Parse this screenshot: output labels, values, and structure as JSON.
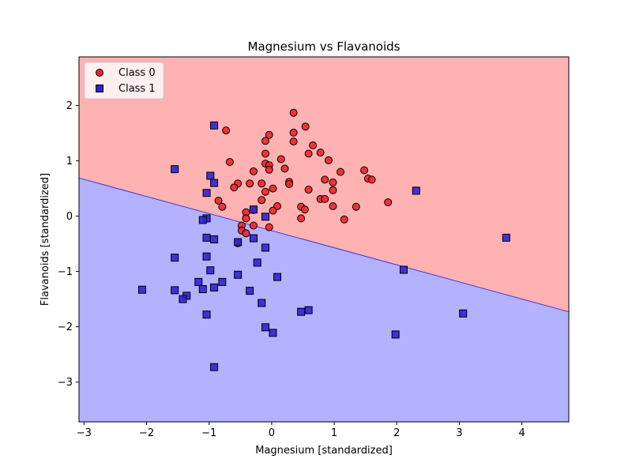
{
  "chart_data": {
    "type": "scatter",
    "title": "Magnesium vs Flavanoids",
    "xlabel": "Magnesium [standardized]",
    "ylabel": "Flavanoids [standardized]",
    "xlim": [
      -3.08,
      4.75
    ],
    "ylim": [
      -3.72,
      2.88
    ],
    "xticks": [
      -3,
      -2,
      -1,
      0,
      1,
      2,
      3,
      4
    ],
    "yticks": [
      -3,
      -2,
      -1,
      0,
      1,
      2
    ],
    "grid": false,
    "legend_position": "top-left",
    "decision_boundary": {
      "x": [
        -3.08,
        4.75
      ],
      "y": [
        0.69,
        -1.73
      ],
      "above_region_color": "#ffb2b2",
      "below_region_color": "#b2b2ff",
      "line_color": "#4b33e0"
    },
    "series": [
      {
        "name": "Class 0",
        "marker": "circle",
        "color": "#f0242a",
        "points": [
          [
            0.35,
            1.87
          ],
          [
            0.54,
            1.62
          ],
          [
            -0.73,
            1.55
          ],
          [
            0.35,
            1.51
          ],
          [
            -0.04,
            1.47
          ],
          [
            -0.1,
            1.36
          ],
          [
            0.35,
            1.35
          ],
          [
            0.66,
            1.28
          ],
          [
            0.78,
            1.15
          ],
          [
            -0.1,
            1.13
          ],
          [
            0.59,
            1.13
          ],
          [
            0.15,
            1.03
          ],
          [
            -0.67,
            0.98
          ],
          [
            0.91,
            1.01
          ],
          [
            -0.1,
            0.95
          ],
          [
            -0.04,
            0.92
          ],
          [
            -0.04,
            0.84
          ],
          [
            0.21,
            0.86
          ],
          [
            -0.29,
            0.81
          ],
          [
            1.1,
            0.8
          ],
          [
            1.48,
            0.83
          ],
          [
            1.54,
            0.68
          ],
          [
            1.6,
            0.66
          ],
          [
            0.28,
            0.62
          ],
          [
            0.28,
            0.58
          ],
          [
            0.85,
            0.66
          ],
          [
            0.98,
            0.61
          ],
          [
            -0.54,
            0.59
          ],
          [
            -0.35,
            0.59
          ],
          [
            -0.16,
            0.59
          ],
          [
            -0.6,
            0.52
          ],
          [
            0.02,
            0.5
          ],
          [
            0.59,
            0.48
          ],
          [
            0.98,
            0.47
          ],
          [
            -0.1,
            0.44
          ],
          [
            -0.16,
            0.29
          ],
          [
            -0.85,
            0.28
          ],
          [
            0.78,
            0.31
          ],
          [
            0.85,
            0.31
          ],
          [
            0.09,
            0.18
          ],
          [
            0.98,
            0.18
          ],
          [
            1.35,
            0.17
          ],
          [
            -0.79,
            0.17
          ],
          [
            0.47,
            0.17
          ],
          [
            0.53,
            0.12
          ],
          [
            -0.29,
            0.11
          ],
          [
            0.02,
            0.1
          ],
          [
            -0.41,
            0.07
          ],
          [
            -0.41,
            -0.04
          ],
          [
            0.47,
            -0.04
          ],
          [
            1.16,
            -0.06
          ],
          [
            -0.48,
            -0.17
          ],
          [
            -0.29,
            -0.17
          ],
          [
            -0.04,
            -0.2
          ],
          [
            -0.48,
            -0.26
          ],
          [
            -0.41,
            -0.31
          ],
          [
            -0.54,
            -0.49
          ],
          [
            1.86,
            0.25
          ]
        ]
      },
      {
        "name": "Class 1",
        "marker": "square",
        "color": "#2b24d6",
        "points": [
          [
            -0.92,
            1.64
          ],
          [
            -1.55,
            0.85
          ],
          [
            -0.98,
            0.73
          ],
          [
            -0.92,
            0.6
          ],
          [
            -1.04,
            0.42
          ],
          [
            2.31,
            0.46
          ],
          [
            -0.29,
            0.12
          ],
          [
            -0.1,
            -0.01
          ],
          [
            -1.04,
            -0.04
          ],
          [
            -1.1,
            -0.07
          ],
          [
            -1.04,
            -0.39
          ],
          [
            -0.92,
            -0.42
          ],
          [
            -0.29,
            -0.4
          ],
          [
            -0.54,
            -0.47
          ],
          [
            -0.1,
            -0.57
          ],
          [
            3.75,
            -0.39
          ],
          [
            -1.55,
            -0.75
          ],
          [
            -1.04,
            -0.73
          ],
          [
            -0.23,
            -0.84
          ],
          [
            2.11,
            -0.97
          ],
          [
            -0.98,
            -0.98
          ],
          [
            -0.54,
            -1.06
          ],
          [
            0.09,
            -1.1
          ],
          [
            -1.17,
            -1.19
          ],
          [
            -0.79,
            -1.19
          ],
          [
            -0.92,
            -1.29
          ],
          [
            -1.1,
            -1.32
          ],
          [
            -0.35,
            -1.35
          ],
          [
            -2.07,
            -1.33
          ],
          [
            -1.55,
            -1.34
          ],
          [
            -1.36,
            -1.44
          ],
          [
            -1.42,
            -1.5
          ],
          [
            -0.16,
            -1.57
          ],
          [
            0.47,
            -1.73
          ],
          [
            0.59,
            -1.7
          ],
          [
            3.06,
            -1.76
          ],
          [
            -1.04,
            -1.78
          ],
          [
            -0.1,
            -2.01
          ],
          [
            0.02,
            -2.11
          ],
          [
            1.98,
            -2.14
          ],
          [
            -0.92,
            -2.73
          ]
        ]
      }
    ]
  }
}
